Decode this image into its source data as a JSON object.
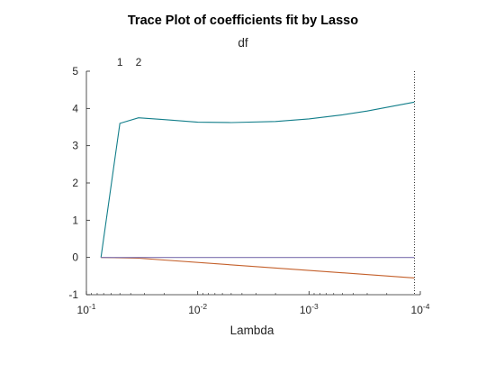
{
  "chart_data": {
    "type": "line",
    "title": "Trace Plot of coefficients fit by Lasso",
    "top_axis_label": "df",
    "top_tick_labels": [
      {
        "lambda": 0.05,
        "label": "1"
      },
      {
        "lambda": 0.034,
        "label": "2"
      }
    ],
    "xlabel": "Lambda",
    "ylabel": "",
    "x_scale": "log",
    "x_reversed": true,
    "xlim": [
      0.1,
      0.0001
    ],
    "ylim": [
      -1,
      5
    ],
    "x_ticks": [
      {
        "value": 0.1,
        "base": "10",
        "exp": "-1"
      },
      {
        "value": 0.01,
        "base": "10",
        "exp": "-2"
      },
      {
        "value": 0.001,
        "base": "10",
        "exp": "-3"
      },
      {
        "value": 0.0001,
        "base": "10",
        "exp": "-4"
      }
    ],
    "y_ticks": [
      -1,
      0,
      1,
      2,
      3,
      4,
      5
    ],
    "grid": false,
    "selected_lambda": 0.000113,
    "series": [
      {
        "color": "#127e8a",
        "x": [
          0.074,
          0.05,
          0.034,
          0.02,
          0.01,
          0.005,
          0.002,
          0.001,
          0.0005,
          0.0003,
          0.000113
        ],
        "y": [
          0,
          3.6,
          3.75,
          3.7,
          3.63,
          3.62,
          3.65,
          3.72,
          3.83,
          3.93,
          4.17
        ]
      },
      {
        "color": "#c4602b",
        "x": [
          0.074,
          0.034,
          0.000113
        ],
        "y": [
          0,
          -0.02,
          -0.55
        ]
      },
      {
        "color": "#7f72b0",
        "x": [
          0.074,
          0.000113
        ],
        "y": [
          0,
          0
        ]
      }
    ]
  }
}
